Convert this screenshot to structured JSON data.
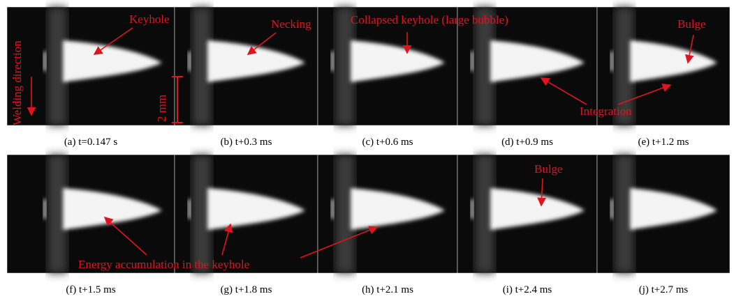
{
  "panels": [
    {
      "caption": "(a) t=0.147 s"
    },
    {
      "caption": "(b) t+0.3 ms"
    },
    {
      "caption": "(c) t+0.6 ms"
    },
    {
      "caption": "(d) t+0.9 ms"
    },
    {
      "caption": "(e) t+1.2 ms"
    },
    {
      "caption": "(f) t+1.5 ms"
    },
    {
      "caption": "(g) t+1.8 ms"
    },
    {
      "caption": "(h) t+2.1 ms"
    },
    {
      "caption": "(i) t+2.4 ms"
    },
    {
      "caption": "(j) t+2.7 ms"
    }
  ],
  "annotations": {
    "keyhole": "Keyhole",
    "necking": "Necking",
    "collapsed": "Collapsed keyhole (large bubble)",
    "bulge_top": "Bulge",
    "integration": "Integration",
    "welding_direction": "Welding direction",
    "scale": "2 mm",
    "bulge_bottom": "Bulge",
    "energy": "Energy accumulation in the keyhole"
  }
}
